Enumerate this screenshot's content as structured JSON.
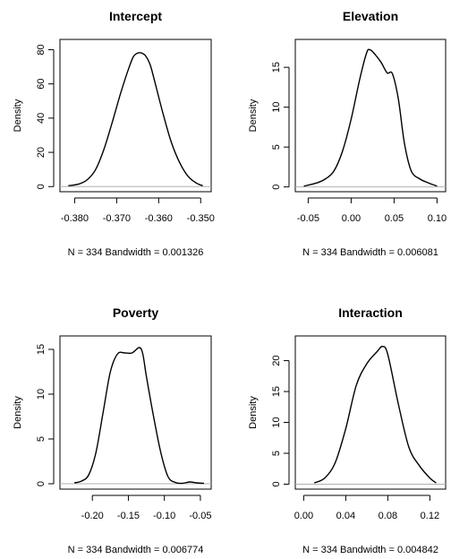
{
  "chart_data": [
    {
      "type": "line",
      "title": "Intercept",
      "ylabel": "Density",
      "subtitle": "N = 334   Bandwidth = 0.001326",
      "xlim": [
        -0.3835,
        -0.3475
      ],
      "ylim": [
        -3,
        86
      ],
      "xticks": [
        -0.38,
        -0.37,
        -0.36,
        -0.35
      ],
      "xtick_labels": [
        "-0.380",
        "-0.370",
        "-0.360",
        "-0.350"
      ],
      "yticks": [
        0,
        20,
        40,
        60,
        80
      ],
      "ytick_labels": [
        "0",
        "20",
        "40",
        "60",
        "80"
      ],
      "x": [
        -0.3815,
        -0.379,
        -0.377,
        -0.375,
        -0.373,
        -0.371,
        -0.369,
        -0.367,
        -0.366,
        -0.365,
        -0.364,
        -0.363,
        -0.362,
        -0.361,
        -0.359,
        -0.357,
        -0.355,
        -0.353,
        -0.351,
        -0.3495
      ],
      "y": [
        0.5,
        1.5,
        4,
        10,
        22,
        38,
        55,
        70,
        76,
        78,
        78,
        76,
        71,
        62,
        43,
        26,
        14,
        6,
        2,
        0.5
      ]
    },
    {
      "type": "line",
      "title": "Elevation",
      "ylabel": "Density",
      "subtitle": "N = 334   Bandwidth = 0.006081",
      "xlim": [
        -0.065,
        0.11
      ],
      "ylim": [
        -0.6,
        18.5
      ],
      "xticks": [
        -0.05,
        0,
        0.05,
        0.1
      ],
      "xtick_labels": [
        "-0.05",
        "0.00",
        "0.05",
        "0.10"
      ],
      "yticks": [
        0,
        5,
        10,
        15
      ],
      "ytick_labels": [
        "0",
        "5",
        "10",
        "15"
      ],
      "x": [
        -0.055,
        -0.04,
        -0.03,
        -0.02,
        -0.01,
        0,
        0.01,
        0.018,
        0.022,
        0.028,
        0.035,
        0.042,
        0.048,
        0.055,
        0.062,
        0.07,
        0.08,
        0.09,
        0.1
      ],
      "y": [
        0.1,
        0.5,
        1,
        2,
        4.5,
        8.5,
        13.5,
        16.8,
        17.2,
        16.6,
        15.6,
        14.3,
        14.2,
        11,
        5.5,
        2,
        1,
        0.5,
        0.1
      ]
    },
    {
      "type": "line",
      "title": "Poverty",
      "ylabel": "Density",
      "subtitle": "N = 334   Bandwidth = 0.006774",
      "xlim": [
        -0.245,
        -0.035
      ],
      "ylim": [
        -0.6,
        16.5
      ],
      "xticks": [
        -0.2,
        -0.15,
        -0.1,
        -0.05
      ],
      "xtick_labels": [
        "-0.20",
        "-0.15",
        "-0.10",
        "-0.05"
      ],
      "yticks": [
        0,
        5,
        10,
        15
      ],
      "ytick_labels": [
        "0",
        "5",
        "10",
        "15"
      ],
      "x": [
        -0.225,
        -0.215,
        -0.205,
        -0.195,
        -0.185,
        -0.175,
        -0.165,
        -0.155,
        -0.145,
        -0.135,
        -0.13,
        -0.125,
        -0.115,
        -0.105,
        -0.095,
        -0.085,
        -0.075,
        -0.065,
        -0.055,
        -0.045
      ],
      "y": [
        0.1,
        0.3,
        1,
        3.5,
        8,
        12.5,
        14.5,
        14.6,
        14.6,
        15.2,
        14.5,
        12,
        7.5,
        3.5,
        0.8,
        0.15,
        0.05,
        0.2,
        0.1,
        0.05
      ]
    },
    {
      "type": "line",
      "title": "Interaction",
      "ylabel": "Density",
      "subtitle": "N = 334   Bandwidth = 0.004842",
      "xlim": [
        -0.008,
        0.135
      ],
      "ylim": [
        -0.8,
        24
      ],
      "xticks": [
        0,
        0.04,
        0.08,
        0.12
      ],
      "xtick_labels": [
        "0.00",
        "0.04",
        "0.08",
        "0.12"
      ],
      "yticks": [
        0,
        5,
        10,
        15,
        20
      ],
      "ytick_labels": [
        "0",
        "5",
        "10",
        "15",
        "20"
      ],
      "x": [
        0.01,
        0.02,
        0.03,
        0.04,
        0.05,
        0.06,
        0.07,
        0.075,
        0.08,
        0.09,
        0.1,
        0.11,
        0.12,
        0.126
      ],
      "y": [
        0.2,
        1,
        3.5,
        9,
        16,
        19.5,
        21.5,
        22.3,
        21,
        13,
        6,
        3,
        1,
        0.2
      ]
    }
  ]
}
